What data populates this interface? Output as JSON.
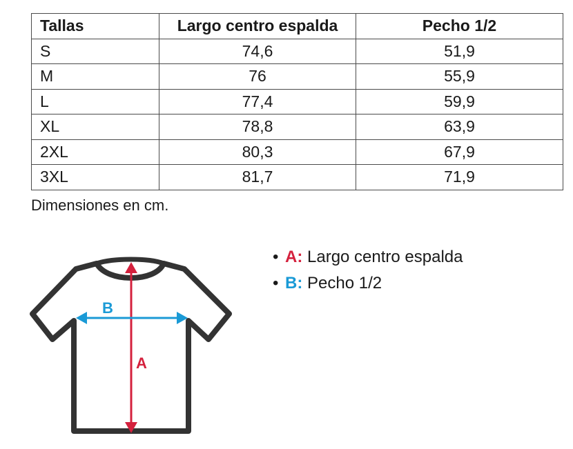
{
  "table": {
    "headers": [
      "Tallas",
      "Largo centro espalda",
      "Pecho 1/2"
    ],
    "rows": [
      [
        "S",
        "74,6",
        "51,9"
      ],
      [
        "M",
        "76",
        "55,9"
      ],
      [
        "L",
        "77,4",
        "59,9"
      ],
      [
        "XL",
        "78,8",
        "63,9"
      ],
      [
        "2XL",
        "80,3",
        "67,9"
      ],
      [
        "3XL",
        "81,7",
        "71,9"
      ]
    ]
  },
  "note": "Dimensiones en cm.",
  "legend": [
    {
      "bullet": "•",
      "key": "A:",
      "text": "Largo centro espalda",
      "color": "#d4213d"
    },
    {
      "bullet": "•",
      "key": "B:",
      "text": "Pecho 1/2",
      "color": "#1a9ad6"
    }
  ],
  "diagram": {
    "label_a": "A",
    "label_b": "B",
    "color_a": "#d4213d",
    "color_b": "#1a9ad6",
    "shirt_color": "#333333"
  }
}
